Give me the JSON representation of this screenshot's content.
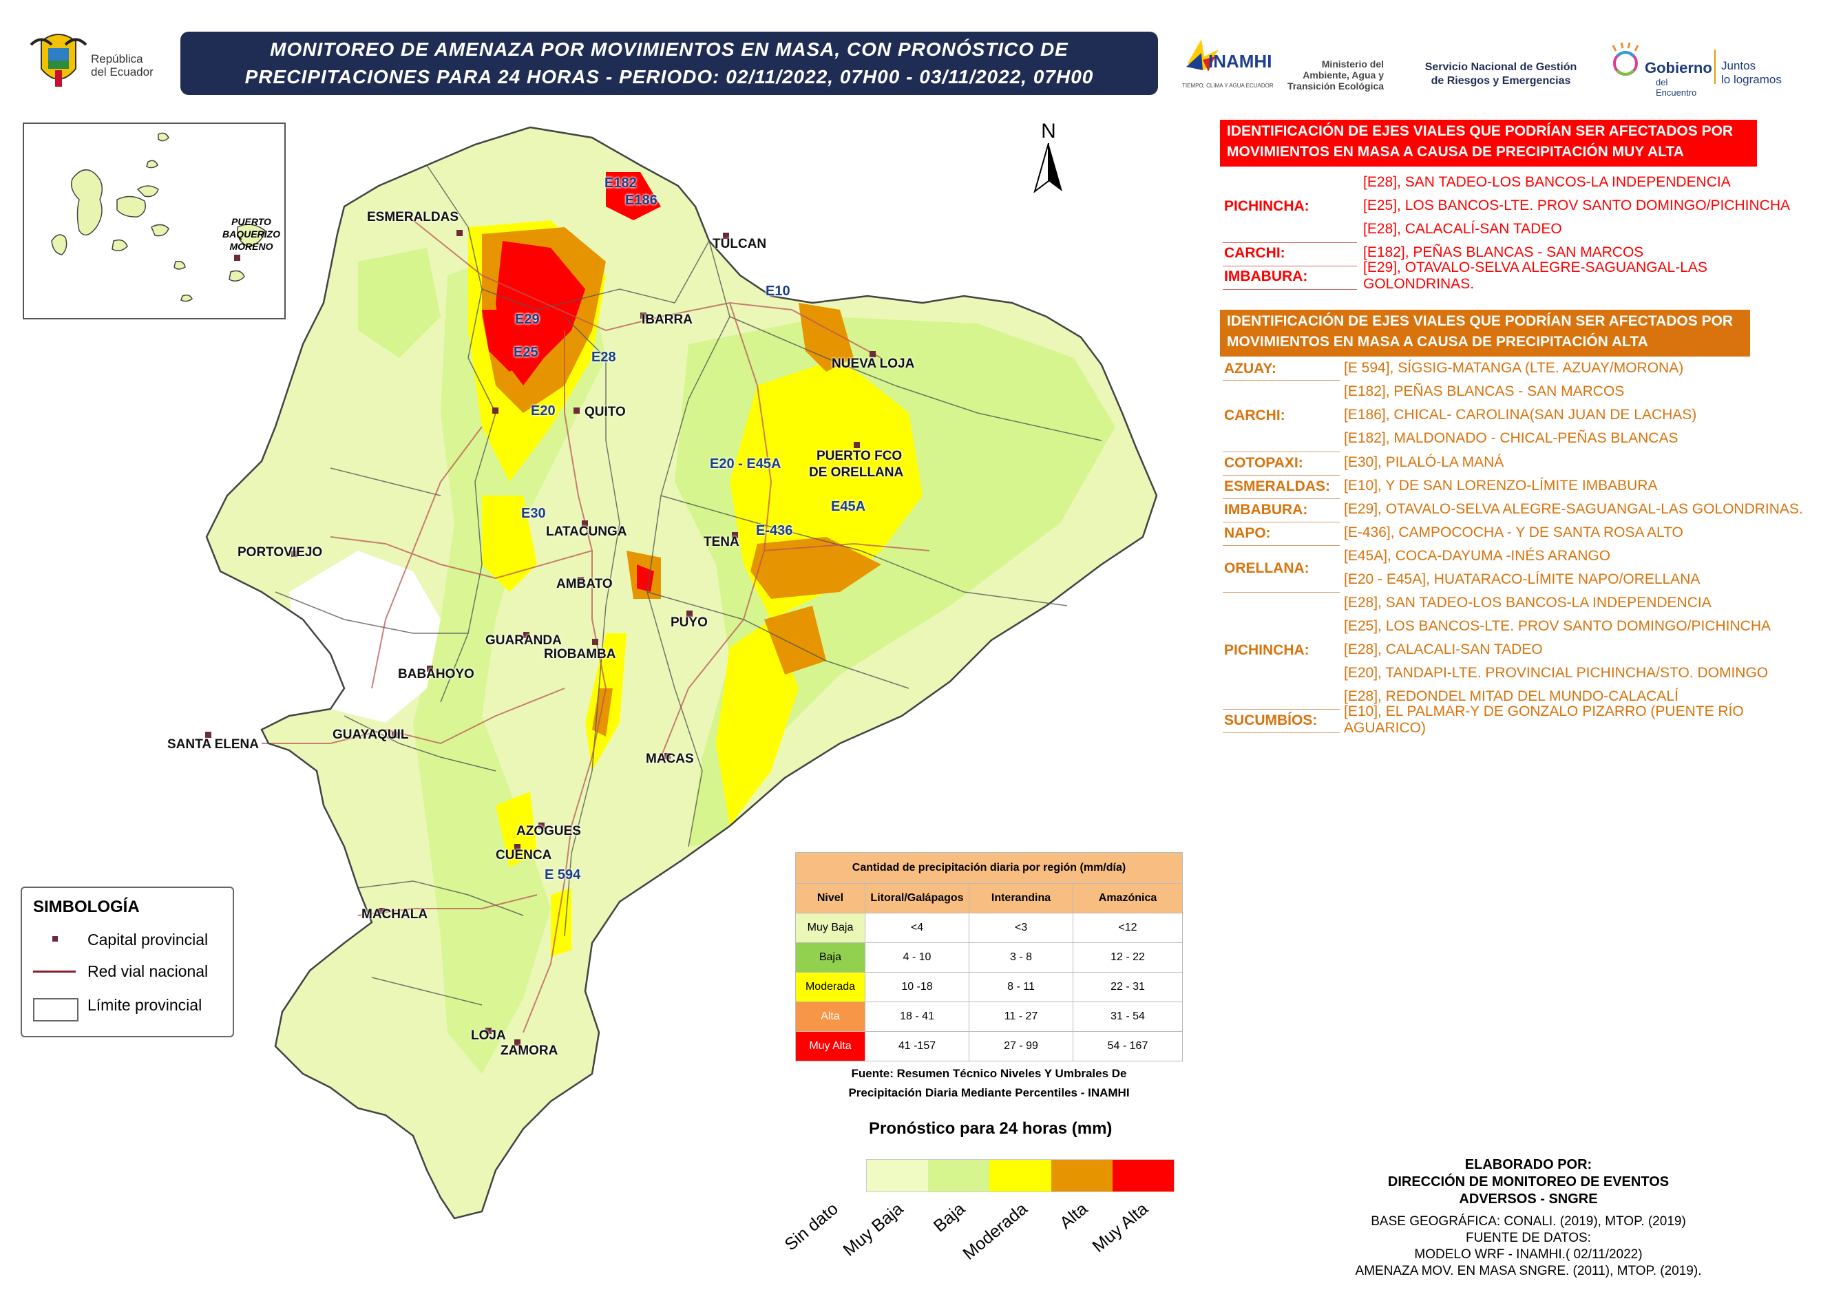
{
  "header": {
    "title_line1": "MONITOREO DE AMENAZA POR MOVIMIENTOS EN MASA, CON PRONÓSTICO DE",
    "title_line2": "PRECIPITACIONES PARA 24 HORAS - PERIODO: 02/11/2022, 07H00 - 03/11/2022, 07H00"
  },
  "logos": {
    "republica": [
      "República",
      "del Ecuador"
    ],
    "inamhi": "INAMHI",
    "inamhi_sub": "TIEMPO, CLIMA Y AGUA ECUADOR",
    "ministerio": [
      "Ministerio del",
      "Ambiente, Agua y",
      "Transición Ecológica"
    ],
    "sngre": [
      "Servicio Nacional de Gestión",
      "de Riesgos y Emergencias"
    ],
    "gobierno": [
      "Gobierno",
      "del Encuentro"
    ],
    "juntos": [
      "Juntos",
      "lo logramos"
    ]
  },
  "north": "N",
  "galapagos": {
    "label": [
      "PUERTO",
      "BAQUERIZO",
      "MORENO"
    ]
  },
  "cities": [
    "ESMERALDAS",
    "TULCAN",
    "IBARRA",
    "NUEVA LOJA",
    "QUITO",
    "PUERTO FCO",
    "DE ORELLANA",
    "LATACUNGA",
    "TENA",
    "PORTOVIEJO",
    "AMBATO",
    "PUYO",
    "GUARANDA",
    "RIOBAMBA",
    "BABAHOYO",
    "SANTA ELENA",
    "GUAYAQUIL",
    "MACAS",
    "AZOGUES",
    "CUENCA",
    "MACHALA",
    "LOJA",
    "ZAMORA"
  ],
  "roads": [
    "E182",
    "E186",
    "E10",
    "E29",
    "E25",
    "E28",
    "E20",
    "E20 - E45A",
    "E45A",
    "E30",
    "E-436",
    "E 594"
  ],
  "muy_alta": {
    "header": [
      "IDENTIFICACIÓN DE EJES VIALES QUE PODRÍAN SER AFECTADOS POR",
      "MOVIMIENTOS EN MASA A CAUSA DE  PRECIPITACIÓN MUY ALTA"
    ],
    "color": "#ff0000",
    "provinces": [
      "PICHINCHA:",
      "CARCHI:",
      "IMBABURA:"
    ],
    "roads": [
      "[E28], SAN TADEO-LOS BANCOS-LA INDEPENDENCIA",
      "[E25], LOS BANCOS-LTE. PROV SANTO DOMINGO/PICHINCHA",
      "[E28], CALACALÍ-SAN TADEO",
      "[E182], PEÑAS BLANCAS - SAN MARCOS",
      "[E29], OTAVALO-SELVA ALEGRE-SAGUANGAL-LAS GOLONDRINAS."
    ]
  },
  "alta": {
    "header": [
      "IDENTIFICACIÓN DE EJES VIALES QUE PODRÍAN SER AFECTADOS POR",
      "MOVIMIENTOS EN MASA A CAUSA DE  PRECIPITACIÓN ALTA"
    ],
    "color": "#d9730d",
    "provinces": [
      "AZUAY:",
      "CARCHI:",
      "COTOPAXI:",
      "ESMERALDAS:",
      "IMBABURA:",
      "NAPO:",
      "ORELLANA:",
      "PICHINCHA:",
      "SUCUMBÍOS:"
    ],
    "roads": [
      "[E 594], SÍGSIG-MATANGA (LTE. AZUAY/MORONA)",
      "[E182], PEÑAS BLANCAS - SAN MARCOS",
      "[E186], CHICAL- CAROLINA(SAN JUAN DE LACHAS)",
      "[E182], MALDONADO - CHICAL-PEÑAS BLANCAS",
      "[E30], PILALÓ-LA MANÁ",
      "[E10], Y DE SAN LORENZO-LÍMITE IMBABURA",
      "[E29], OTAVALO-SELVA ALEGRE-SAGUANGAL-LAS GOLONDRINAS.",
      "[E-436], CAMPOCOCHA - Y DE SANTA ROSA ALTO",
      "[E45A], COCA-DAYUMA -INÉS ARANGO",
      "[E20 - E45A], HUATARACO-LÍMITE NAPO/ORELLANA",
      "[E28], SAN TADEO-LOS BANCOS-LA INDEPENDENCIA",
      "[E25], LOS BANCOS-LTE. PROV SANTO DOMINGO/PICHINCHA",
      "[E28], CALACALI-SAN TADEO",
      "[E20], TANDAPI-LTE. PROVINCIAL PICHINCHA/STO. DOMINGO",
      "[E28], REDONDEL MITAD DEL MUNDO-CALACALÍ",
      "[E10], EL PALMAR-Y DE GONZALO PIZARRO (PUENTE RÍO AGUARICO)"
    ]
  },
  "simbologia": {
    "title": "SIMBOLOGÍA",
    "items": [
      "Capital provincial",
      "Red vial nacional",
      "Límite provincial"
    ]
  },
  "threshold_table": {
    "title": "Cantidad de precipitación diaria por región (mm/día)",
    "headers": [
      "Nivel",
      "Litoral/Galápagos",
      "Interandina",
      "Amazónica"
    ],
    "rows": [
      {
        "level": "Muy Baja",
        "color": "#eaf7b7",
        "values": [
          "<4",
          "<3",
          "<12"
        ]
      },
      {
        "level": "Baja",
        "color": "#92d050",
        "values": [
          "4 - 10",
          "3 - 8",
          "12 - 22"
        ]
      },
      {
        "level": "Moderada",
        "color": "#ffff00",
        "values": [
          "10 -18",
          "8 - 11",
          "22 - 31"
        ]
      },
      {
        "level": "Alta",
        "color": "#f79646",
        "values": [
          "18 - 41",
          "11 - 27",
          "31 - 54"
        ]
      },
      {
        "level": "Muy Alta",
        "color": "#ff0000",
        "values": [
          "41 -157",
          "27 - 99",
          "54 - 167"
        ]
      }
    ],
    "source": [
      "Fuente: Resumen Técnico Niveles Y Umbrales De",
      "Precipitación Diaria Mediante Percentiles - INAMHI"
    ],
    "header_color": "#f8bd80"
  },
  "forecast_scale": {
    "title": "Pronóstico para 24 horas (mm)",
    "labels": [
      "Sin dato",
      "Muy Baja",
      "Baja",
      "Moderada",
      "Alta",
      "Muy Alta"
    ],
    "colors": [
      "#f0fbc3",
      "#d6f58e",
      "#ffff00",
      "#e69500",
      "#ff0000"
    ]
  },
  "credits": {
    "line1": "ELABORADO POR:",
    "line2": "DIRECCIÓN DE MONITOREO DE EVENTOS",
    "line3": "ADVERSOS - SNGRE",
    "line4": "BASE GEOGRÁFICA: CONALI. (2019), MTOP. (2019)",
    "line5": "FUENTE DE DATOS:",
    "line6": "MODELO WRF - INAMHI.( 02/11/2022)",
    "line7": "AMENAZA MOV. EN MASA SNGRE. (2011), MTOP. (2019)."
  }
}
